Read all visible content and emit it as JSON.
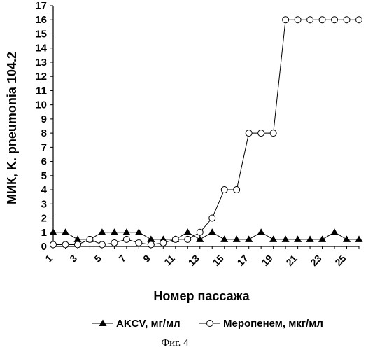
{
  "chart_data": {
    "type": "line",
    "title": "",
    "xlabel": "Номер пассажа",
    "ylabel": "МИК, K. pneumonia 104.2",
    "ylim": [
      0,
      17
    ],
    "xlim": [
      1,
      26
    ],
    "y_ticks": [
      "0",
      "1",
      "2",
      "3",
      "4",
      "5",
      "6",
      "7",
      "8",
      "9",
      "10",
      "11",
      "12",
      "13",
      "14",
      "15",
      "16",
      "17"
    ],
    "x_ticks": [
      "1",
      "3",
      "5",
      "7",
      "9",
      "11",
      "13",
      "15",
      "17",
      "19",
      "21",
      "23",
      "25"
    ],
    "grid": false,
    "legend_position": "bottom",
    "x": [
      1,
      2,
      3,
      4,
      5,
      6,
      7,
      8,
      9,
      10,
      11,
      12,
      13,
      14,
      15,
      16,
      17,
      18,
      19,
      20,
      21,
      22,
      23,
      24,
      25,
      26
    ],
    "series": [
      {
        "name": "AKCV, мг/мл",
        "marker": "triangle",
        "values": [
          1,
          1,
          0.5,
          0.5,
          1,
          1,
          1,
          1,
          0.5,
          0.5,
          0.5,
          1,
          0.5,
          1,
          0.5,
          0.5,
          0.5,
          1,
          0.5,
          0.5,
          0.5,
          0.5,
          0.5,
          1,
          0.5,
          0.5
        ]
      },
      {
        "name": "Меропенем, мкг/мл",
        "marker": "circle",
        "values": [
          0.125,
          0.125,
          0.125,
          0.5,
          0.125,
          0.25,
          0.5,
          0.25,
          0.125,
          0.25,
          0.5,
          0.5,
          1,
          2,
          4,
          4,
          8,
          8,
          8,
          16,
          16,
          16,
          16,
          16,
          16,
          16
        ]
      }
    ]
  },
  "caption": "Фиг. 4"
}
